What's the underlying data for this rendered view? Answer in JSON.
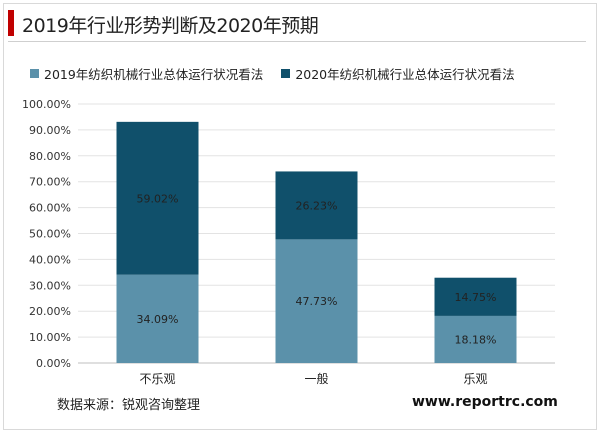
{
  "title": "2019年行业形势判断及2020年预期",
  "source": "数据来源：锐观咨询整理",
  "website": "www.reportrc.com",
  "colors": {
    "accent": "#c00000",
    "series_2019": "#5b91aa",
    "series_2020": "#10506b"
  },
  "chart_data": {
    "type": "bar",
    "stacked": true,
    "categories": [
      "不乐观",
      "一般",
      "乐观"
    ],
    "series": [
      {
        "name": "2019年纺织机械行业总体运行状况看法",
        "values": [
          34.09,
          47.73,
          18.18
        ],
        "labels": [
          "34.09%",
          "47.73%",
          "18.18%"
        ],
        "color": "#5b91aa"
      },
      {
        "name": "2020年纺织机械行业总体运行状况看法",
        "values": [
          59.02,
          26.23,
          14.75
        ],
        "labels": [
          "59.02%",
          "26.23%",
          "14.75%"
        ],
        "color": "#10506b"
      }
    ],
    "ylim": [
      0,
      100
    ],
    "yticks": [
      "0.00%",
      "10.00%",
      "20.00%",
      "30.00%",
      "40.00%",
      "50.00%",
      "60.00%",
      "70.00%",
      "80.00%",
      "90.00%",
      "100.00%"
    ],
    "grid": true,
    "legend_position": "top-left"
  }
}
